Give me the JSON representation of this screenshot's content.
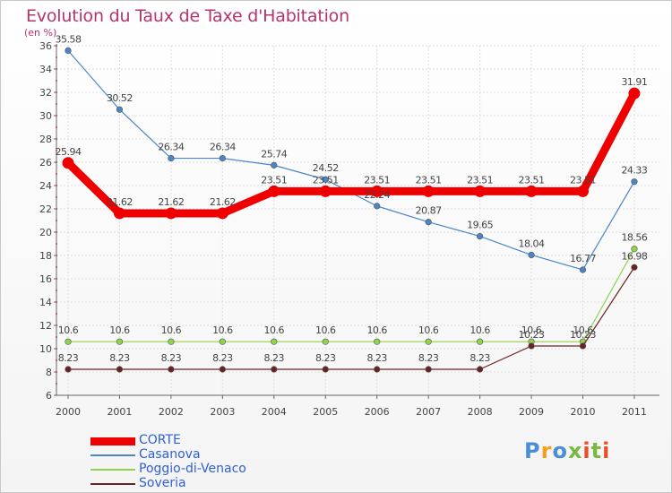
{
  "header": {
    "title": "Evolution du Taux de Taxe d'Habitation",
    "subtitle": "(en %)"
  },
  "colors": {
    "title": "#b5346e",
    "legend_text": "#2f5fd6",
    "axis": "#666666",
    "grid": "#dddddd",
    "tick_mark": "#cc0000"
  },
  "logo": {
    "text": "Proxiti",
    "letters": [
      {
        "ch": "P",
        "color": "#4a8fd6"
      },
      {
        "ch": "r",
        "color": "#f29f1d"
      },
      {
        "ch": "o",
        "color": "#4a8fd6"
      },
      {
        "ch": "x",
        "color": "#7ab843"
      },
      {
        "ch": "i",
        "color": "#e8502a"
      },
      {
        "ch": "t",
        "color": "#7ab843"
      },
      {
        "ch": "i",
        "color": "#e8502a"
      }
    ]
  },
  "chart_data": {
    "type": "line",
    "title": "Evolution du Taux de Taxe d'Habitation",
    "subtitle": "(en %)",
    "xlabel": "",
    "ylabel": "",
    "x": [
      "2000",
      "2001",
      "2002",
      "2003",
      "2004",
      "2005",
      "2006",
      "2007",
      "2008",
      "2009",
      "2010",
      "2011"
    ],
    "ylim": [
      6,
      36
    ],
    "yticks": [
      6,
      8,
      10,
      12,
      14,
      16,
      18,
      20,
      22,
      24,
      26,
      28,
      30,
      32,
      34,
      36
    ],
    "grid": true,
    "legend_position": "bottom-left",
    "series": [
      {
        "name": "CORTE",
        "color": "#ee0000",
        "style": "bold",
        "values": [
          25.94,
          21.62,
          21.62,
          21.62,
          23.51,
          23.51,
          23.51,
          23.51,
          23.51,
          23.51,
          23.51,
          31.91
        ],
        "labels": [
          "25.94",
          "21.62",
          "21.62",
          "21.62",
          "23.51",
          "23.51",
          "23.51",
          "23.51",
          "23.51",
          "23.51",
          "23.51",
          "31.91"
        ]
      },
      {
        "name": "Casanova",
        "color": "#4a86c6",
        "style": "thin",
        "values": [
          35.58,
          30.52,
          26.34,
          26.34,
          25.74,
          24.52,
          22.24,
          20.87,
          19.65,
          18.04,
          16.77,
          24.33
        ],
        "labels": [
          "35.58",
          "30.52",
          "26.34",
          "26.34",
          "25.74",
          "24.52",
          "22.24",
          "20.87",
          "19.65",
          "18.04",
          "16.77",
          "24.33"
        ]
      },
      {
        "name": "Poggio-di-Venaco",
        "color": "#8ed44f",
        "style": "thin",
        "values": [
          10.6,
          10.6,
          10.6,
          10.6,
          10.6,
          10.6,
          10.6,
          10.6,
          10.6,
          10.6,
          10.6,
          18.56
        ],
        "labels": [
          "10.6",
          "10.6",
          "10.6",
          "10.6",
          "10.6",
          "10.6",
          "10.6",
          "10.6",
          "10.6",
          "10.6",
          "10.6",
          "18.56"
        ]
      },
      {
        "name": "Soveria",
        "color": "#6b2222",
        "style": "thin",
        "values": [
          8.23,
          8.23,
          8.23,
          8.23,
          8.23,
          8.23,
          8.23,
          8.23,
          8.23,
          10.23,
          10.23,
          16.98
        ],
        "labels": [
          "8.23",
          "8.23",
          "8.23",
          "8.23",
          "8.23",
          "8.23",
          "8.23",
          "8.23",
          "8.23",
          "10.23",
          "10.23",
          "16.98"
        ]
      }
    ]
  }
}
